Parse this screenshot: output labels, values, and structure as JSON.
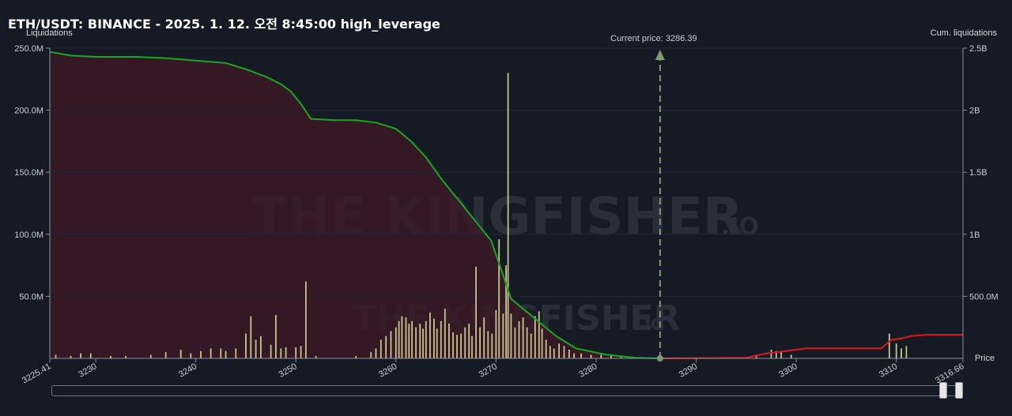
{
  "title": "ETH/USDT: BINANCE - 2025. 1. 12. 오전 8:45:00 high_leverage",
  "watermark": {
    "brand_text": "THE KINGFISHER",
    "brand_suffix": ".IO"
  },
  "colors": {
    "background": "#161a25",
    "long_area_fill": "#3a1a24",
    "cum_long_line": "#17a820",
    "cum_short_line": "#e0151d",
    "bar_color": "#d6d69a",
    "current_price_line": "#7f9c6e"
  },
  "chart_data": {
    "type": "bar",
    "left_axis": {
      "label": "Liquidations",
      "range": [
        0,
        250000000
      ],
      "ticks": [
        {
          "value": 50000000,
          "label": "50.0M"
        },
        {
          "value": 100000000,
          "label": "100.0M"
        },
        {
          "value": 150000000,
          "label": "150.0M"
        },
        {
          "value": 200000000,
          "label": "200.0M"
        },
        {
          "value": 250000000,
          "label": "250.0M"
        }
      ]
    },
    "right_axis": {
      "label": "Cum. liquidations",
      "range": [
        0,
        2500000000
      ],
      "ticks": [
        {
          "value": 500000000,
          "label": "500.0M"
        },
        {
          "value": 1000000000,
          "label": "1B"
        },
        {
          "value": 1500000000,
          "label": "1.5B"
        },
        {
          "value": 2000000000,
          "label": "2B"
        },
        {
          "value": 2500000000,
          "label": "2.5B"
        }
      ]
    },
    "x_axis": {
      "label": "Price",
      "range": [
        3225.41,
        3316.66
      ],
      "ticks": [
        {
          "value": 3225.41,
          "label": "3225.41"
        },
        {
          "value": 3230,
          "label": "3230"
        },
        {
          "value": 3240,
          "label": "3240"
        },
        {
          "value": 3250,
          "label": "3250"
        },
        {
          "value": 3260,
          "label": "3260"
        },
        {
          "value": 3270,
          "label": "3270"
        },
        {
          "value": 3280,
          "label": "3280"
        },
        {
          "value": 3290,
          "label": "3290"
        },
        {
          "value": 3300,
          "label": "3300"
        },
        {
          "value": 3310,
          "label": "3310"
        },
        {
          "value": 3316.66,
          "label": "3316.66"
        }
      ]
    },
    "current_price": {
      "value": 3286.39,
      "label": "Current price: 3286.39"
    },
    "series": [
      {
        "type": "bar",
        "points": [
          [
            3226.0,
            3000000.0
          ],
          [
            3227.5,
            2000000.0
          ],
          [
            3228.5,
            4000000.0
          ],
          [
            3229.5,
            4000000.0
          ],
          [
            3231.5,
            2000000.0
          ],
          [
            3233.0,
            2000000.0
          ],
          [
            3235.5,
            3000000.0
          ],
          [
            3237.0,
            5000000.0
          ],
          [
            3238.5,
            7000000.0
          ],
          [
            3239.5,
            4000000.0
          ],
          [
            3240.5,
            6000000.0
          ],
          [
            3241.5,
            8000000.0
          ],
          [
            3242.5,
            8000000.0
          ],
          [
            3243.0,
            6000000.0
          ],
          [
            3244.0,
            8000000.0
          ],
          [
            3245.0,
            20000000.0
          ],
          [
            3245.5,
            34000000.0
          ],
          [
            3246.0,
            15000000.0
          ],
          [
            3246.5,
            18000000.0
          ],
          [
            3247.5,
            11000000.0
          ],
          [
            3248.0,
            35000000.0
          ],
          [
            3248.5,
            8000000.0
          ],
          [
            3249.0,
            9000000.0
          ],
          [
            3250.0,
            9000000.0
          ],
          [
            3250.5,
            10000000.0
          ],
          [
            3251.0,
            62000000.0
          ],
          [
            3252.0,
            2000000.0
          ],
          [
            3256.0,
            2000000.0
          ],
          [
            3257.5,
            5000000.0
          ],
          [
            3258.0,
            8000000.0
          ],
          [
            3258.5,
            15000000.0
          ],
          [
            3259.0,
            18000000.0
          ],
          [
            3259.5,
            22000000.0
          ],
          [
            3260.0,
            25000000.0
          ],
          [
            3260.3,
            30000000.0
          ],
          [
            3260.6,
            34000000.0
          ],
          [
            3261.0,
            33000000.0
          ],
          [
            3261.3,
            28000000.0
          ],
          [
            3261.6,
            30000000.0
          ],
          [
            3262.0,
            25000000.0
          ],
          [
            3262.4,
            28000000.0
          ],
          [
            3262.7,
            24000000.0
          ],
          [
            3263.0,
            30000000.0
          ],
          [
            3263.4,
            37000000.0
          ],
          [
            3263.8,
            32000000.0
          ],
          [
            3264.1,
            24000000.0
          ],
          [
            3264.5,
            30000000.0
          ],
          [
            3264.9,
            40000000.0
          ],
          [
            3265.3,
            28000000.0
          ],
          [
            3265.7,
            21000000.0
          ],
          [
            3266.1,
            19000000.0
          ],
          [
            3266.5,
            20000000.0
          ],
          [
            3266.9,
            25000000.0
          ],
          [
            3267.3,
            28000000.0
          ],
          [
            3267.6,
            18000000.0
          ],
          [
            3268.0,
            74000000.0
          ],
          [
            3268.4,
            25000000.0
          ],
          [
            3268.8,
            33000000.0
          ],
          [
            3269.2,
            22000000.0
          ],
          [
            3269.6,
            20000000.0
          ],
          [
            3270.0,
            39000000.0
          ],
          [
            3270.3,
            96000000.0
          ],
          [
            3270.7,
            36000000.0
          ],
          [
            3271.0,
            75000000.0
          ],
          [
            3271.2,
            230000000.0
          ],
          [
            3271.5,
            36000000.0
          ],
          [
            3271.9,
            25000000.0
          ],
          [
            3272.3,
            30000000.0
          ],
          [
            3272.7,
            33000000.0
          ],
          [
            3273.1,
            25000000.0
          ],
          [
            3273.5,
            20000000.0
          ],
          [
            3273.9,
            34000000.0
          ],
          [
            3274.3,
            38000000.0
          ],
          [
            3274.6,
            24000000.0
          ],
          [
            3275.0,
            15000000.0
          ],
          [
            3275.4,
            10000000.0
          ],
          [
            3275.8,
            8000000.0
          ],
          [
            3276.3,
            12000000.0
          ],
          [
            3276.8,
            10000000.0
          ],
          [
            3277.3,
            7000000.0
          ],
          [
            3277.8,
            4000000.0
          ],
          [
            3278.5,
            4000000.0
          ],
          [
            3279.5,
            3000000.0
          ],
          [
            3280.5,
            3000000.0
          ],
          [
            3281.5,
            2000000.0
          ],
          [
            3282.5,
            2000000.0
          ],
          [
            3296.0,
            3000000.0
          ],
          [
            3297.5,
            7000000.0
          ],
          [
            3298.0,
            6000000.0
          ],
          [
            3298.5,
            5000000.0
          ],
          [
            3299.5,
            3000000.0
          ],
          [
            3309.3,
            20000000.0
          ],
          [
            3310.0,
            12000000.0
          ],
          [
            3310.5,
            8000000.0
          ],
          [
            3311.0,
            10000000.0
          ]
        ]
      },
      {
        "type": "line",
        "axis": "right",
        "points": [
          [
            3225.41,
            2470000000.0
          ],
          [
            3227.5,
            2440000000.0
          ],
          [
            3230,
            2430000000.0
          ],
          [
            3234,
            2430000000.0
          ],
          [
            3237,
            2420000000.0
          ],
          [
            3240,
            2400000000.0
          ],
          [
            3243,
            2380000000.0
          ],
          [
            3245,
            2330000000.0
          ],
          [
            3247,
            2270000000.0
          ],
          [
            3248.5,
            2210000000.0
          ],
          [
            3249.5,
            2150000000.0
          ],
          [
            3250.5,
            2050000000.0
          ],
          [
            3251.5,
            1930000000.0
          ],
          [
            3254,
            1920000000.0
          ],
          [
            3256,
            1920000000.0
          ],
          [
            3258,
            1900000000.0
          ],
          [
            3260,
            1850000000.0
          ],
          [
            3261.5,
            1750000000.0
          ],
          [
            3263,
            1620000000.0
          ],
          [
            3264.5,
            1450000000.0
          ],
          [
            3266,
            1300000000.0
          ],
          [
            3268,
            1100000000.0
          ],
          [
            3269.5,
            950000000.0
          ],
          [
            3270.5,
            720000000.0
          ],
          [
            3271.5,
            480000000.0
          ],
          [
            3273,
            380000000.0
          ],
          [
            3274.5,
            280000000.0
          ],
          [
            3276,
            180000000.0
          ],
          [
            3278,
            80000000.0
          ],
          [
            3281,
            30000000.0
          ],
          [
            3284,
            5000000.0
          ],
          [
            3286.39,
            0
          ]
        ]
      },
      {
        "type": "line",
        "axis": "right",
        "points": [
          [
            3286.39,
            0
          ],
          [
            3295,
            5000000.0
          ],
          [
            3297,
            40000000.0
          ],
          [
            3299,
            60000000.0
          ],
          [
            3301,
            80000000.0
          ],
          [
            3305,
            80000000.0
          ],
          [
            3308.5,
            80000000.0
          ],
          [
            3309.5,
            150000000.0
          ],
          [
            3310.5,
            160000000.0
          ],
          [
            3311.5,
            180000000.0
          ],
          [
            3313,
            190000000.0
          ],
          [
            3316.66,
            190000000.0
          ]
        ]
      }
    ]
  }
}
